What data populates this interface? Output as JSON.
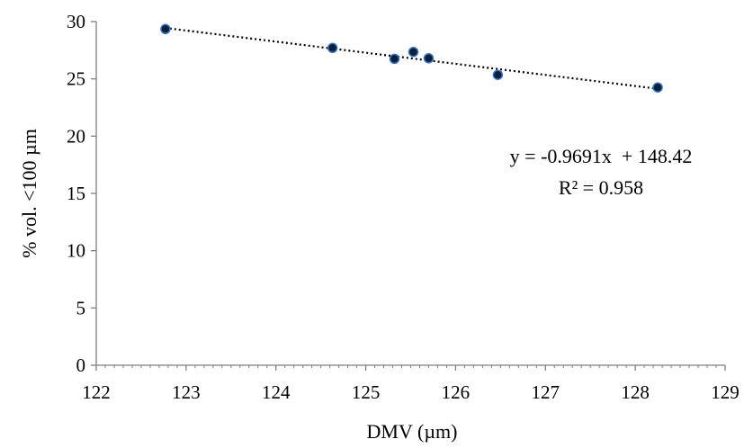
{
  "chart_data": {
    "type": "scatter",
    "title": "",
    "xlabel": "DMV (µm)",
    "ylabel": "% vol. <100 µm",
    "xlim": [
      122,
      129
    ],
    "ylim": [
      0,
      30
    ],
    "xticks": [
      122,
      123,
      124,
      125,
      126,
      127,
      128,
      129
    ],
    "yticks": [
      0,
      5,
      10,
      15,
      20,
      25,
      30
    ],
    "grid": false,
    "legend": "none",
    "marker_color": "#0a1f3c",
    "marker_edge": "#3b78c4",
    "points": [
      {
        "x": 122.77,
        "y": 29.35
      },
      {
        "x": 124.63,
        "y": 27.7
      },
      {
        "x": 125.32,
        "y": 26.75
      },
      {
        "x": 125.53,
        "y": 27.35
      },
      {
        "x": 125.7,
        "y": 26.8
      },
      {
        "x": 126.47,
        "y": 25.35
      },
      {
        "x": 128.25,
        "y": 24.25
      }
    ],
    "trendline": {
      "type": "linear",
      "slope": -0.9691,
      "intercept": 148.42,
      "equation": "y = -0.9691x  + 148.42",
      "r2_label": "R² = 0.958"
    }
  }
}
